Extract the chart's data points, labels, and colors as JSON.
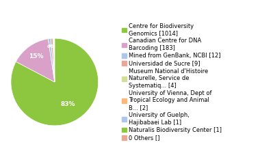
{
  "values": [
    1014,
    183,
    12,
    9,
    4,
    2,
    1,
    1,
    0
  ],
  "labels": [
    "Centre for Biodiversity\nGenomics [1014]",
    "Canadian Centre for DNA\nBarcoding [183]",
    "Mined from GenBank, NCBI [12]",
    "Universidad de Sucre [9]",
    "Museum National d'Histoire\nNaturelle, Service de\nSystematiq... [4]",
    "University of Vienna, Dept of\nTropical Ecology and Animal\nB... [2]",
    "University of Guelph,\nHajibabaei Lab [1]",
    "Naturalis Biodiversity Center [1]",
    "0 Others []"
  ],
  "colors": [
    "#8dc63f",
    "#d9a0c8",
    "#aec6e8",
    "#e8a898",
    "#d4de99",
    "#f9b97a",
    "#aec6e8",
    "#8dc63f",
    "#e8a898"
  ],
  "startangle": 90,
  "background_color": "#ffffff",
  "font_size": 6.5,
  "legend_font_size": 6.0
}
